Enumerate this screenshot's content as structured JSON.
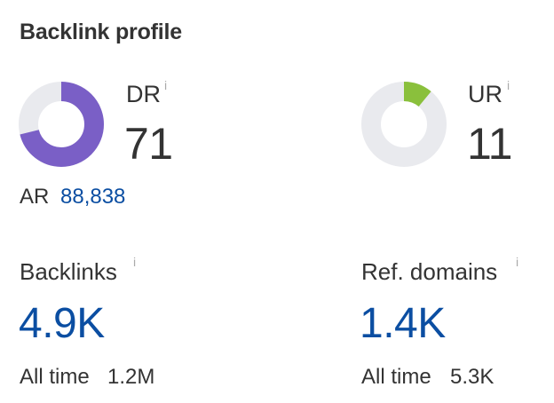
{
  "header": {
    "title": "Backlink profile"
  },
  "dr": {
    "label": "DR",
    "info": "i",
    "value": "71",
    "ratio": 0.71,
    "fill_color": "#7a5fc6",
    "track_color": "#e9eaee"
  },
  "ur": {
    "label": "UR",
    "info": "i",
    "value": "11",
    "ratio": 0.11,
    "fill_color": "#8ac03c",
    "track_color": "#e9eaee"
  },
  "ar": {
    "label": "AR",
    "value": "88,838"
  },
  "backlinks": {
    "label": "Backlinks",
    "info": "i",
    "value": "4.9K",
    "all_time_label": "All time",
    "all_time_value": "1.2M"
  },
  "ref_domains": {
    "label": "Ref. domains",
    "info": "i",
    "value": "1.4K",
    "all_time_label": "All time",
    "all_time_value": "5.3K"
  },
  "colors": {
    "link_blue": "#0b4ea2",
    "text": "#333333",
    "info_gray": "#aaaaaa"
  }
}
